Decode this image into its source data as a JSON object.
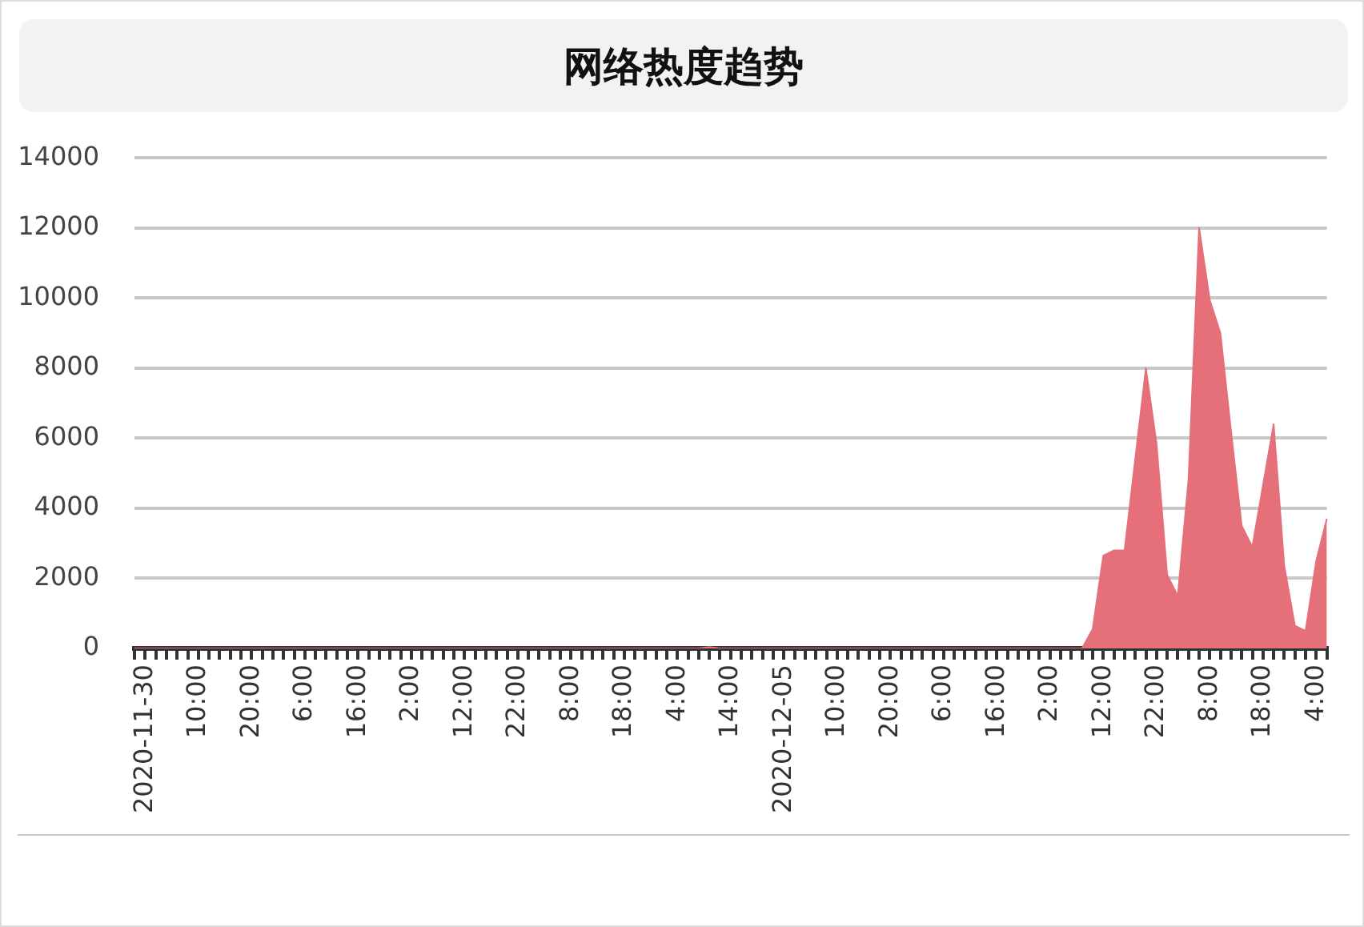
{
  "chart_data": {
    "type": "area",
    "title": "网络热度趋势",
    "categories": [
      null,
      "2020-11-30",
      null,
      null,
      null,
      null,
      "10:00",
      null,
      null,
      null,
      null,
      "20:00",
      null,
      null,
      null,
      null,
      "6:00",
      null,
      null,
      null,
      null,
      "16:00",
      null,
      null,
      null,
      null,
      "2:00",
      null,
      null,
      null,
      null,
      "12:00",
      null,
      null,
      null,
      null,
      "22:00",
      null,
      null,
      null,
      null,
      "8:00",
      null,
      null,
      null,
      null,
      "18:00",
      null,
      null,
      null,
      null,
      "4:00",
      null,
      null,
      null,
      null,
      "14:00",
      null,
      null,
      null,
      null,
      "2020-12-05",
      null,
      null,
      null,
      null,
      "10:00",
      null,
      null,
      null,
      null,
      "20:00",
      null,
      null,
      null,
      null,
      "6:00",
      null,
      null,
      null,
      null,
      "16:00",
      null,
      null,
      null,
      null,
      "2:00",
      null,
      null,
      null,
      null,
      "12:00",
      null,
      null,
      null,
      null,
      "22:00",
      null,
      null,
      null,
      null,
      "8:00",
      null,
      null,
      null,
      null,
      "18:00",
      null,
      null,
      null,
      null,
      "4:00",
      null
    ],
    "values": [
      0,
      0,
      0,
      0,
      0,
      0,
      0,
      0,
      0,
      0,
      0,
      0,
      0,
      0,
      0,
      0,
      0,
      0,
      0,
      0,
      0,
      0,
      0,
      0,
      0,
      0,
      0,
      0,
      0,
      0,
      0,
      0,
      0,
      0,
      0,
      0,
      0,
      0,
      0,
      0,
      0,
      0,
      0,
      0,
      0,
      0,
      0,
      0,
      0,
      0,
      0,
      0,
      0,
      0,
      40,
      0,
      0,
      0,
      0,
      0,
      0,
      0,
      0,
      0,
      0,
      0,
      0,
      0,
      0,
      0,
      0,
      0,
      0,
      0,
      0,
      0,
      0,
      0,
      0,
      0,
      0,
      0,
      0,
      0,
      0,
      0,
      0,
      0,
      0,
      0,
      550,
      2650,
      2800,
      2800,
      5400,
      8000,
      5850,
      2100,
      1500,
      4800,
      12000,
      9950,
      9000,
      6200,
      3500,
      2900,
      4650,
      6400,
      2350,
      650,
      500,
      2500,
      3700
    ],
    "color": "#e5707a",
    "ylim": [
      0,
      14000
    ],
    "yticks": [
      0,
      2000,
      4000,
      6000,
      8000,
      10000,
      12000,
      14000
    ],
    "grid": "y"
  }
}
